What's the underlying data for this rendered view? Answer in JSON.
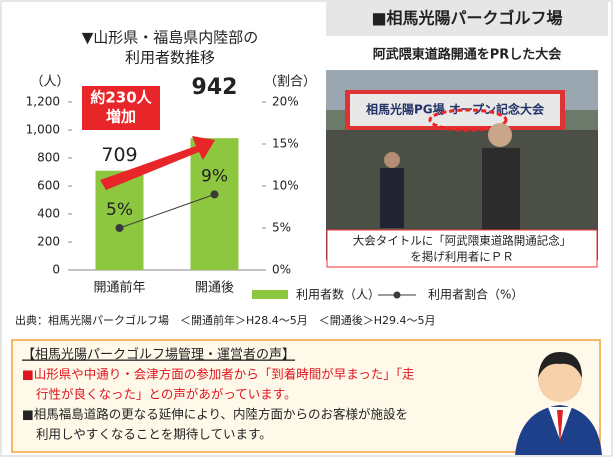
{
  "chart_data": {
    "type": "bar",
    "title": [
      "▼山形県・福島県内陸部の",
      "利用者数推移"
    ],
    "y_label": "（人）",
    "y2_label": "（割合）",
    "categories": [
      "開通前年",
      "開通後"
    ],
    "series": [
      {
        "name": "利用者数（人）",
        "color": "#8dc63f",
        "values": [
          709,
          942
        ]
      },
      {
        "name": "利用者割合（%）",
        "color": "#3a3a3a",
        "type": "line",
        "axis": "y2",
        "values": [
          5,
          9
        ],
        "value_labels": [
          "5%",
          "9%"
        ]
      }
    ],
    "ylim": [
      0,
      1200
    ],
    "yticks": [
      0,
      200,
      400,
      600,
      800,
      {
        "value": 1000,
        "label": "1,000"
      },
      {
        "value": 1200,
        "label": "1,200"
      }
    ],
    "y2lim": [
      0,
      20
    ],
    "y2ticks": [
      {
        "value": 0,
        "label": "0%"
      },
      {
        "value": 5,
        "label": "5%"
      },
      {
        "value": 10,
        "label": "10%"
      },
      {
        "value": 15,
        "label": "15%"
      },
      {
        "value": 20,
        "label": "20%"
      }
    ],
    "annotation": [
      "約230人",
      "増加"
    ]
  },
  "photo": {
    "title": "■相馬光陽パークゴルフ場",
    "subtitle": "阿武隈東道路開通をPRした大会",
    "sign": "相馬光陽PG場 オープン記念大会",
    "caption": [
      "大会タイトルに「阿武隈東道路開通記念」",
      "を掲げ利用者にＰＲ"
    ]
  },
  "source": "出典：相馬光陽パークゴルフ場　＜開通前年＞H28.4～5月　＜開通後＞H29.4～5月",
  "voice": {
    "heading": "【相馬光陽パークゴルフ場管理・運営者の声】",
    "items": [
      [
        "■山形県や中通り・会津方面の参加者から「到着時間が早まった」「走",
        "行性が良くなった」との声があがっています。"
      ],
      [
        "■相馬福島道路の更なる延伸により、内陸方面からのお客様が施設を",
        "利用しやすくなることを期待しています。"
      ]
    ]
  }
}
